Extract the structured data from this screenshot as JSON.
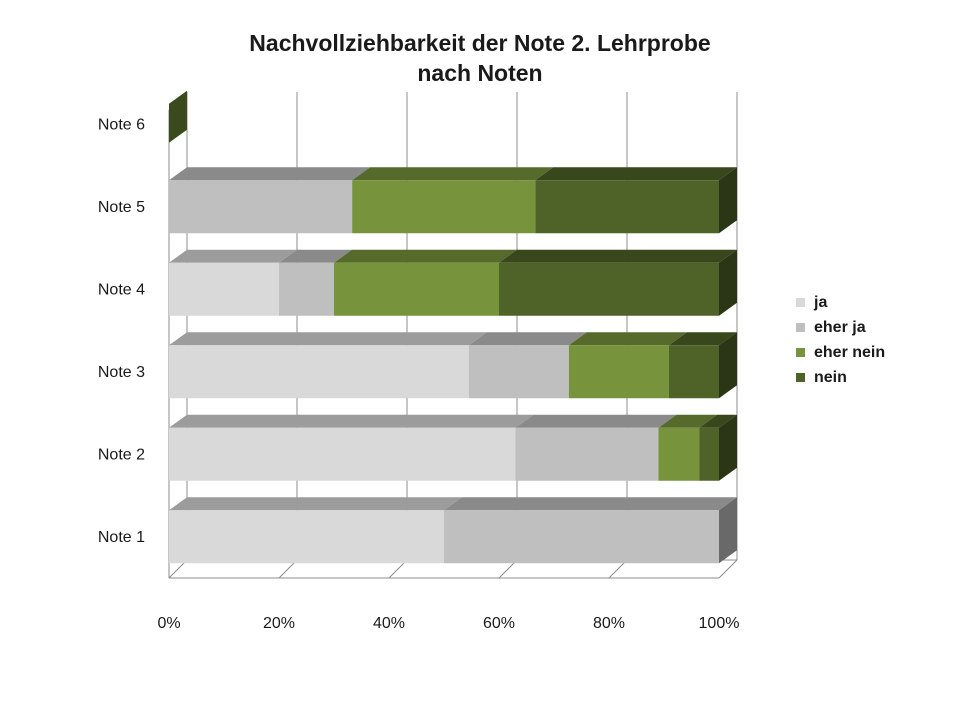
{
  "chart_data": {
    "type": "bar",
    "orientation": "horizontal",
    "stacked": "100%",
    "title": "Nachvollziehbarkeit der Note 2. Lehrprobe nach Noten",
    "title_lines": [
      "Nachvollziehbarkeit der Note 2. Lehrprobe",
      "nach Noten"
    ],
    "categories": [
      "Note 1",
      "Note 2",
      "Note 3",
      "Note 4",
      "Note 5",
      "Note 6"
    ],
    "x_ticks": [
      "0%",
      "20%",
      "40%",
      "60%",
      "80%",
      "100%"
    ],
    "xlim": [
      0,
      100
    ],
    "legend_position": "right",
    "grid": true,
    "series": [
      {
        "name": "ja",
        "color": "#d9d9d9",
        "values": [
          50,
          63,
          54.5,
          20,
          0,
          0
        ]
      },
      {
        "name": "eher ja",
        "color": "#bfbfbf",
        "values": [
          50,
          26,
          18.2,
          10,
          33.3,
          0
        ]
      },
      {
        "name": "eher nein",
        "color": "#77933c",
        "values": [
          0,
          7.4,
          18.2,
          30,
          33.3,
          0
        ]
      },
      {
        "name": "nein",
        "color": "#4f6228",
        "values": [
          0,
          3.6,
          9.1,
          40,
          33.4,
          0
        ]
      }
    ]
  }
}
